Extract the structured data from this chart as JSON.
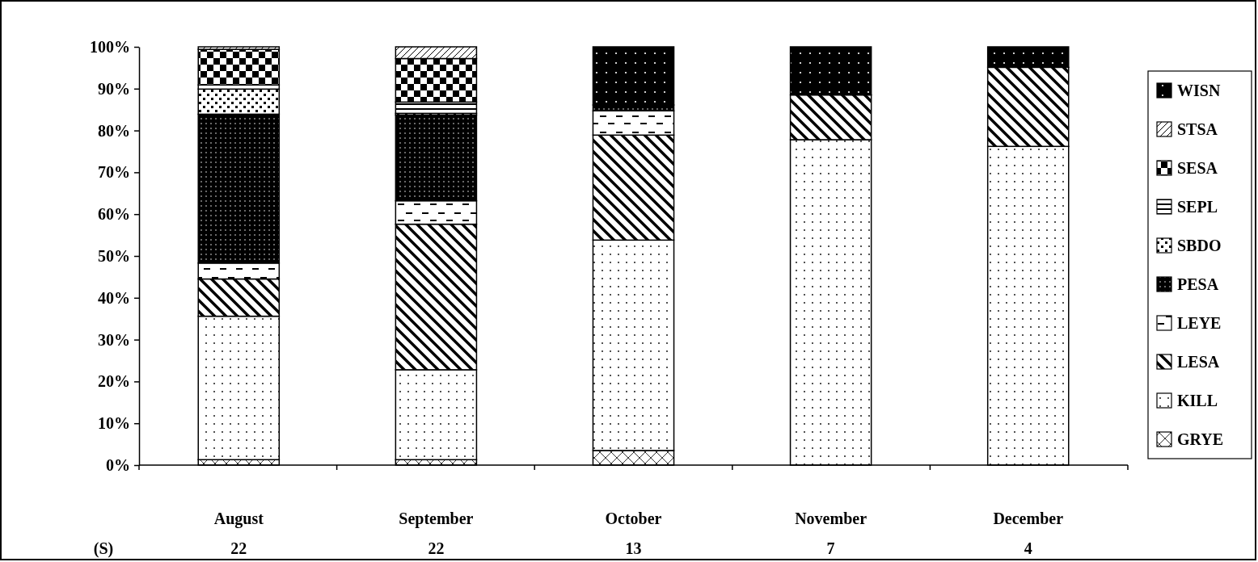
{
  "chart_data": {
    "type": "bar",
    "stacked": true,
    "categories": [
      "August",
      "September",
      "October",
      "November",
      "December"
    ],
    "ylim": [
      0,
      100
    ],
    "yticks": [
      {
        "value": 0,
        "label": "0%"
      },
      {
        "value": 10,
        "label": "10%"
      },
      {
        "value": 20,
        "label": "20%"
      },
      {
        "value": 30,
        "label": "30%"
      },
      {
        "value": 40,
        "label": "40%"
      },
      {
        "value": 50,
        "label": "50%"
      },
      {
        "value": 60,
        "label": "60%"
      },
      {
        "value": 70,
        "label": "70%"
      },
      {
        "value": 80,
        "label": "80%"
      },
      {
        "value": 90,
        "label": "90%"
      },
      {
        "value": 100,
        "label": "100%"
      }
    ],
    "series": [
      {
        "name": "GRYE",
        "color": "#000000",
        "values": [
          1.3,
          1.3,
          3.5,
          0,
          0
        ]
      },
      {
        "name": "KILL",
        "color": "#000000",
        "values": [
          34.3,
          21.5,
          50.3,
          77.8,
          76.2
        ]
      },
      {
        "name": "LESA",
        "color": "#000000",
        "values": [
          8.9,
          34.8,
          25.1,
          10.7,
          18.9
        ]
      },
      {
        "name": "LEYE",
        "color": "#000000",
        "values": [
          3.8,
          5.6,
          5.8,
          0,
          0
        ]
      },
      {
        "name": "PESA",
        "color": "#000000",
        "values": [
          35.6,
          20.5,
          1.4,
          0,
          0
        ]
      },
      {
        "name": "SBDO",
        "color": "#000000",
        "values": [
          6.0,
          0.4,
          0,
          0,
          0
        ]
      },
      {
        "name": "SEPL",
        "color": "#000000",
        "values": [
          1.0,
          2.7,
          0,
          0,
          0
        ]
      },
      {
        "name": "SESA",
        "color": "#000000",
        "values": [
          8.5,
          10.4,
          0,
          0,
          0
        ]
      },
      {
        "name": "STSA",
        "color": "#000000",
        "values": [
          0.6,
          2.8,
          0,
          0,
          0
        ]
      },
      {
        "name": "WISN",
        "color": "#000000",
        "values": [
          0,
          0,
          13.9,
          11.5,
          4.9
        ]
      }
    ],
    "legend": "right",
    "grid": false,
    "annotations": [
      "(S)",
      "22",
      "22",
      "13",
      "7",
      "4"
    ]
  }
}
